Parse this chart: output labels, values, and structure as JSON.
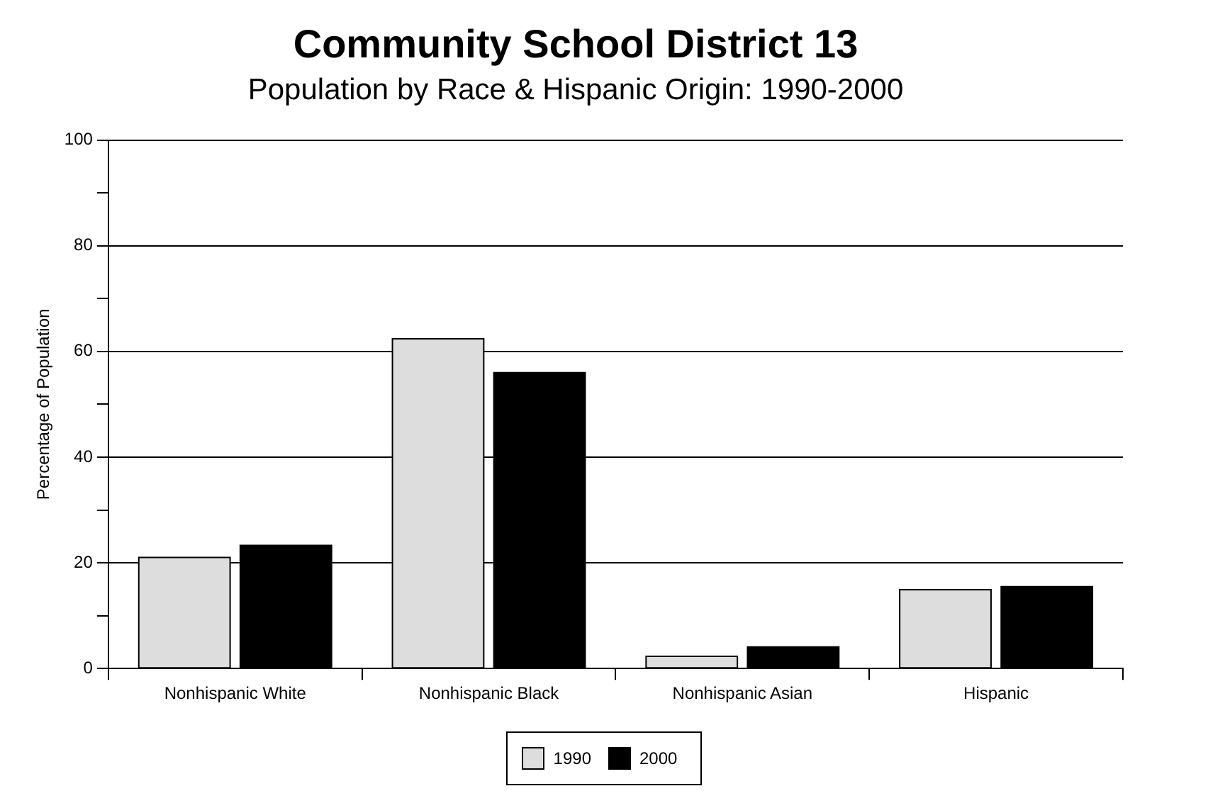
{
  "chart_data": {
    "type": "bar",
    "title": "Community School District 13",
    "subtitle": "Population by Race & Hispanic Origin: 1990-2000",
    "ylabel": "Percentage of Population",
    "categories": [
      "Nonhispanic White",
      "Nonhispanic Black",
      "Nonhispanic Asian",
      "Hispanic"
    ],
    "series": [
      {
        "name": "1990",
        "color": "#dddddd",
        "values": [
          21,
          62.4,
          2.3,
          14.9
        ]
      },
      {
        "name": "2000",
        "color": "#000000",
        "values": [
          23.3,
          56,
          4.1,
          15.5
        ]
      }
    ],
    "ylim": [
      0,
      100
    ],
    "yticks": [
      0,
      {
        "value": 10,
        "label": null
      },
      20,
      {
        "value": 30,
        "label": null
      },
      40,
      {
        "value": 50,
        "label": null
      },
      60,
      {
        "value": 70,
        "label": null
      },
      80,
      {
        "value": 90,
        "label": null
      },
      100
    ],
    "grid": "y",
    "legend": "bottom"
  }
}
